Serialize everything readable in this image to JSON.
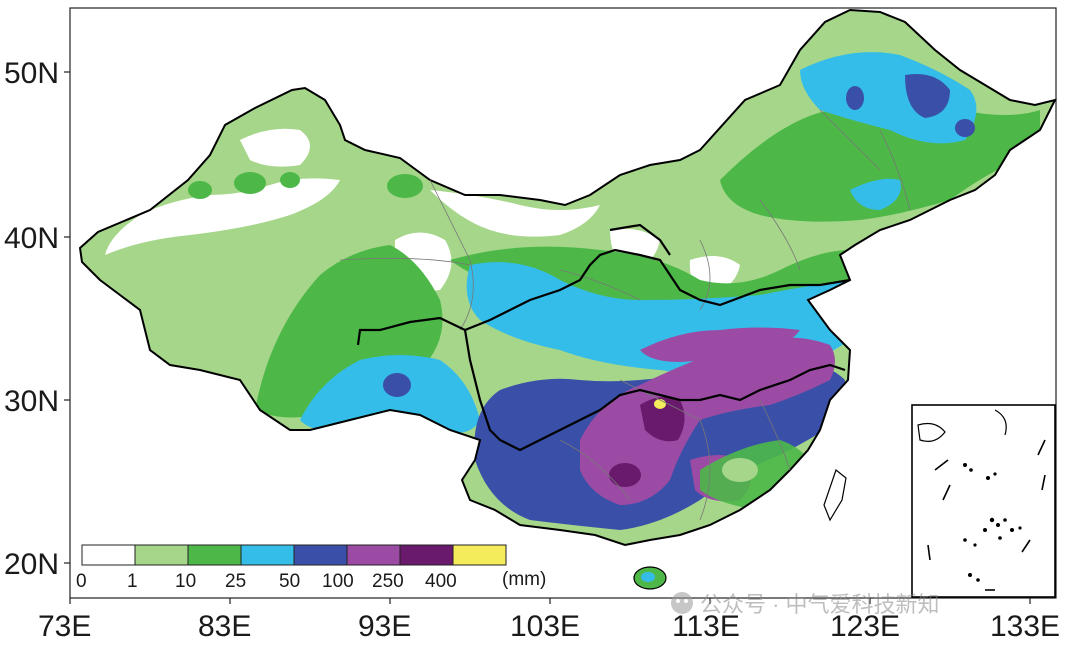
{
  "map": {
    "y_axis_labels": [
      "50N",
      "40N",
      "30N",
      "20N"
    ],
    "x_axis_labels": [
      "73E",
      "83E",
      "93E",
      "103E",
      "113E",
      "123E",
      "133E"
    ],
    "legend": {
      "tick_labels": [
        "0",
        "1",
        "10",
        "25",
        "50",
        "100",
        "250",
        "400"
      ],
      "unit": "(mm)",
      "bins": [
        {
          "range": "0-1",
          "color": "#ffffff"
        },
        {
          "range": "1-10",
          "color": "#a5d68a"
        },
        {
          "range": "10-25",
          "color": "#4db848"
        },
        {
          "range": "25-50",
          "color": "#35bde9"
        },
        {
          "range": "50-100",
          "color": "#3a50a8"
        },
        {
          "range": "100-250",
          "color": "#9c4ba4"
        },
        {
          "range": "250-400",
          "color": "#6a1a6c"
        },
        {
          "range": ">400",
          "color": "#f4ec5a"
        }
      ]
    },
    "inset": "South China Sea islands",
    "watermark": "公众号 · 中气爱科技新知"
  }
}
